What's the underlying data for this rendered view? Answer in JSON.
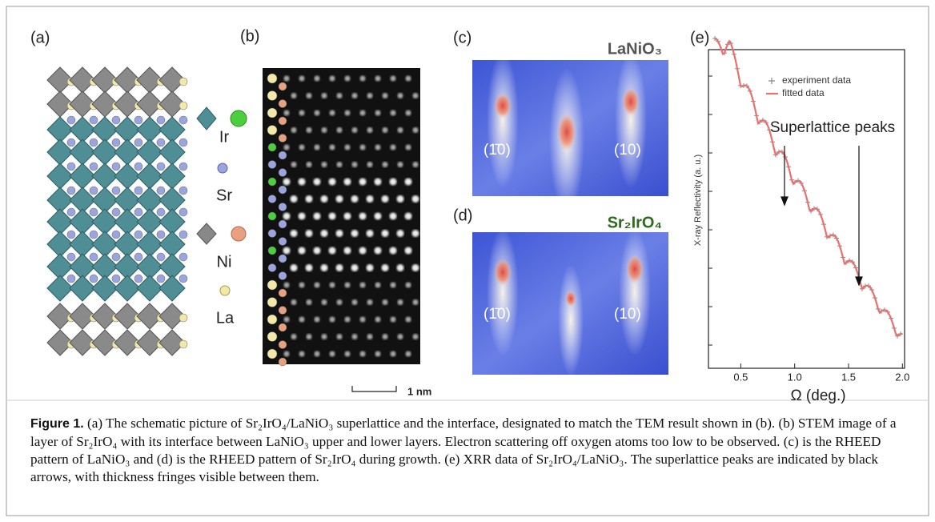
{
  "panels": {
    "a": {
      "label": "(a)",
      "legend": [
        "Ir",
        "Sr",
        "Ni",
        "La"
      ]
    },
    "b": {
      "label": "(b)",
      "scale_bar": "1 nm"
    },
    "c": {
      "label": "(c)",
      "material": "LaNiO₃",
      "spot_left": "(1̄0)",
      "spot_right": "(10)"
    },
    "d": {
      "label": "(d)",
      "material": "Sr₂IrO₄",
      "spot_left": "(1̄0)",
      "spot_right": "(10)"
    },
    "e": {
      "label": "(e)"
    }
  },
  "chart_data": {
    "type": "line",
    "ylabel": "X-ray Reflectivity (a. u.)",
    "xlabel": "Ω (deg.)",
    "annotation": "Superlattice peaks",
    "xlim": [
      0.2,
      2.02
    ],
    "xticks": [
      0.5,
      {
        "value": 1.0,
        "label": "1.0"
      },
      1.5,
      {
        "value": 2.0,
        "label": "2.0"
      }
    ],
    "series": [
      {
        "name": "experiment data",
        "color": "#888888"
      },
      {
        "name": "fitted data",
        "color": "#e8706e"
      }
    ]
  },
  "caption": {
    "label": "Figure 1.",
    "text": "(a) The schematic picture of Sr₂IrO₄/LaNiO₃ superlattice and the interface, designated to match the TEM result shown in (b). (b) STEM image of a layer of Sr₂IrO₄ with its interface between LaNiO₃ upper and lower layers. Electron scattering off oxygen atoms too low to be observed. (c) is the RHEED pattern of LaNiO₃ and (d) is the RHEED pattern of Sr₂IrO₄ during growth. (e) XRR data of Sr₂IrO₄/LaNiO₃. The superlattice peaks are indicated by black arrows, with thickness fringes visible between them."
  }
}
